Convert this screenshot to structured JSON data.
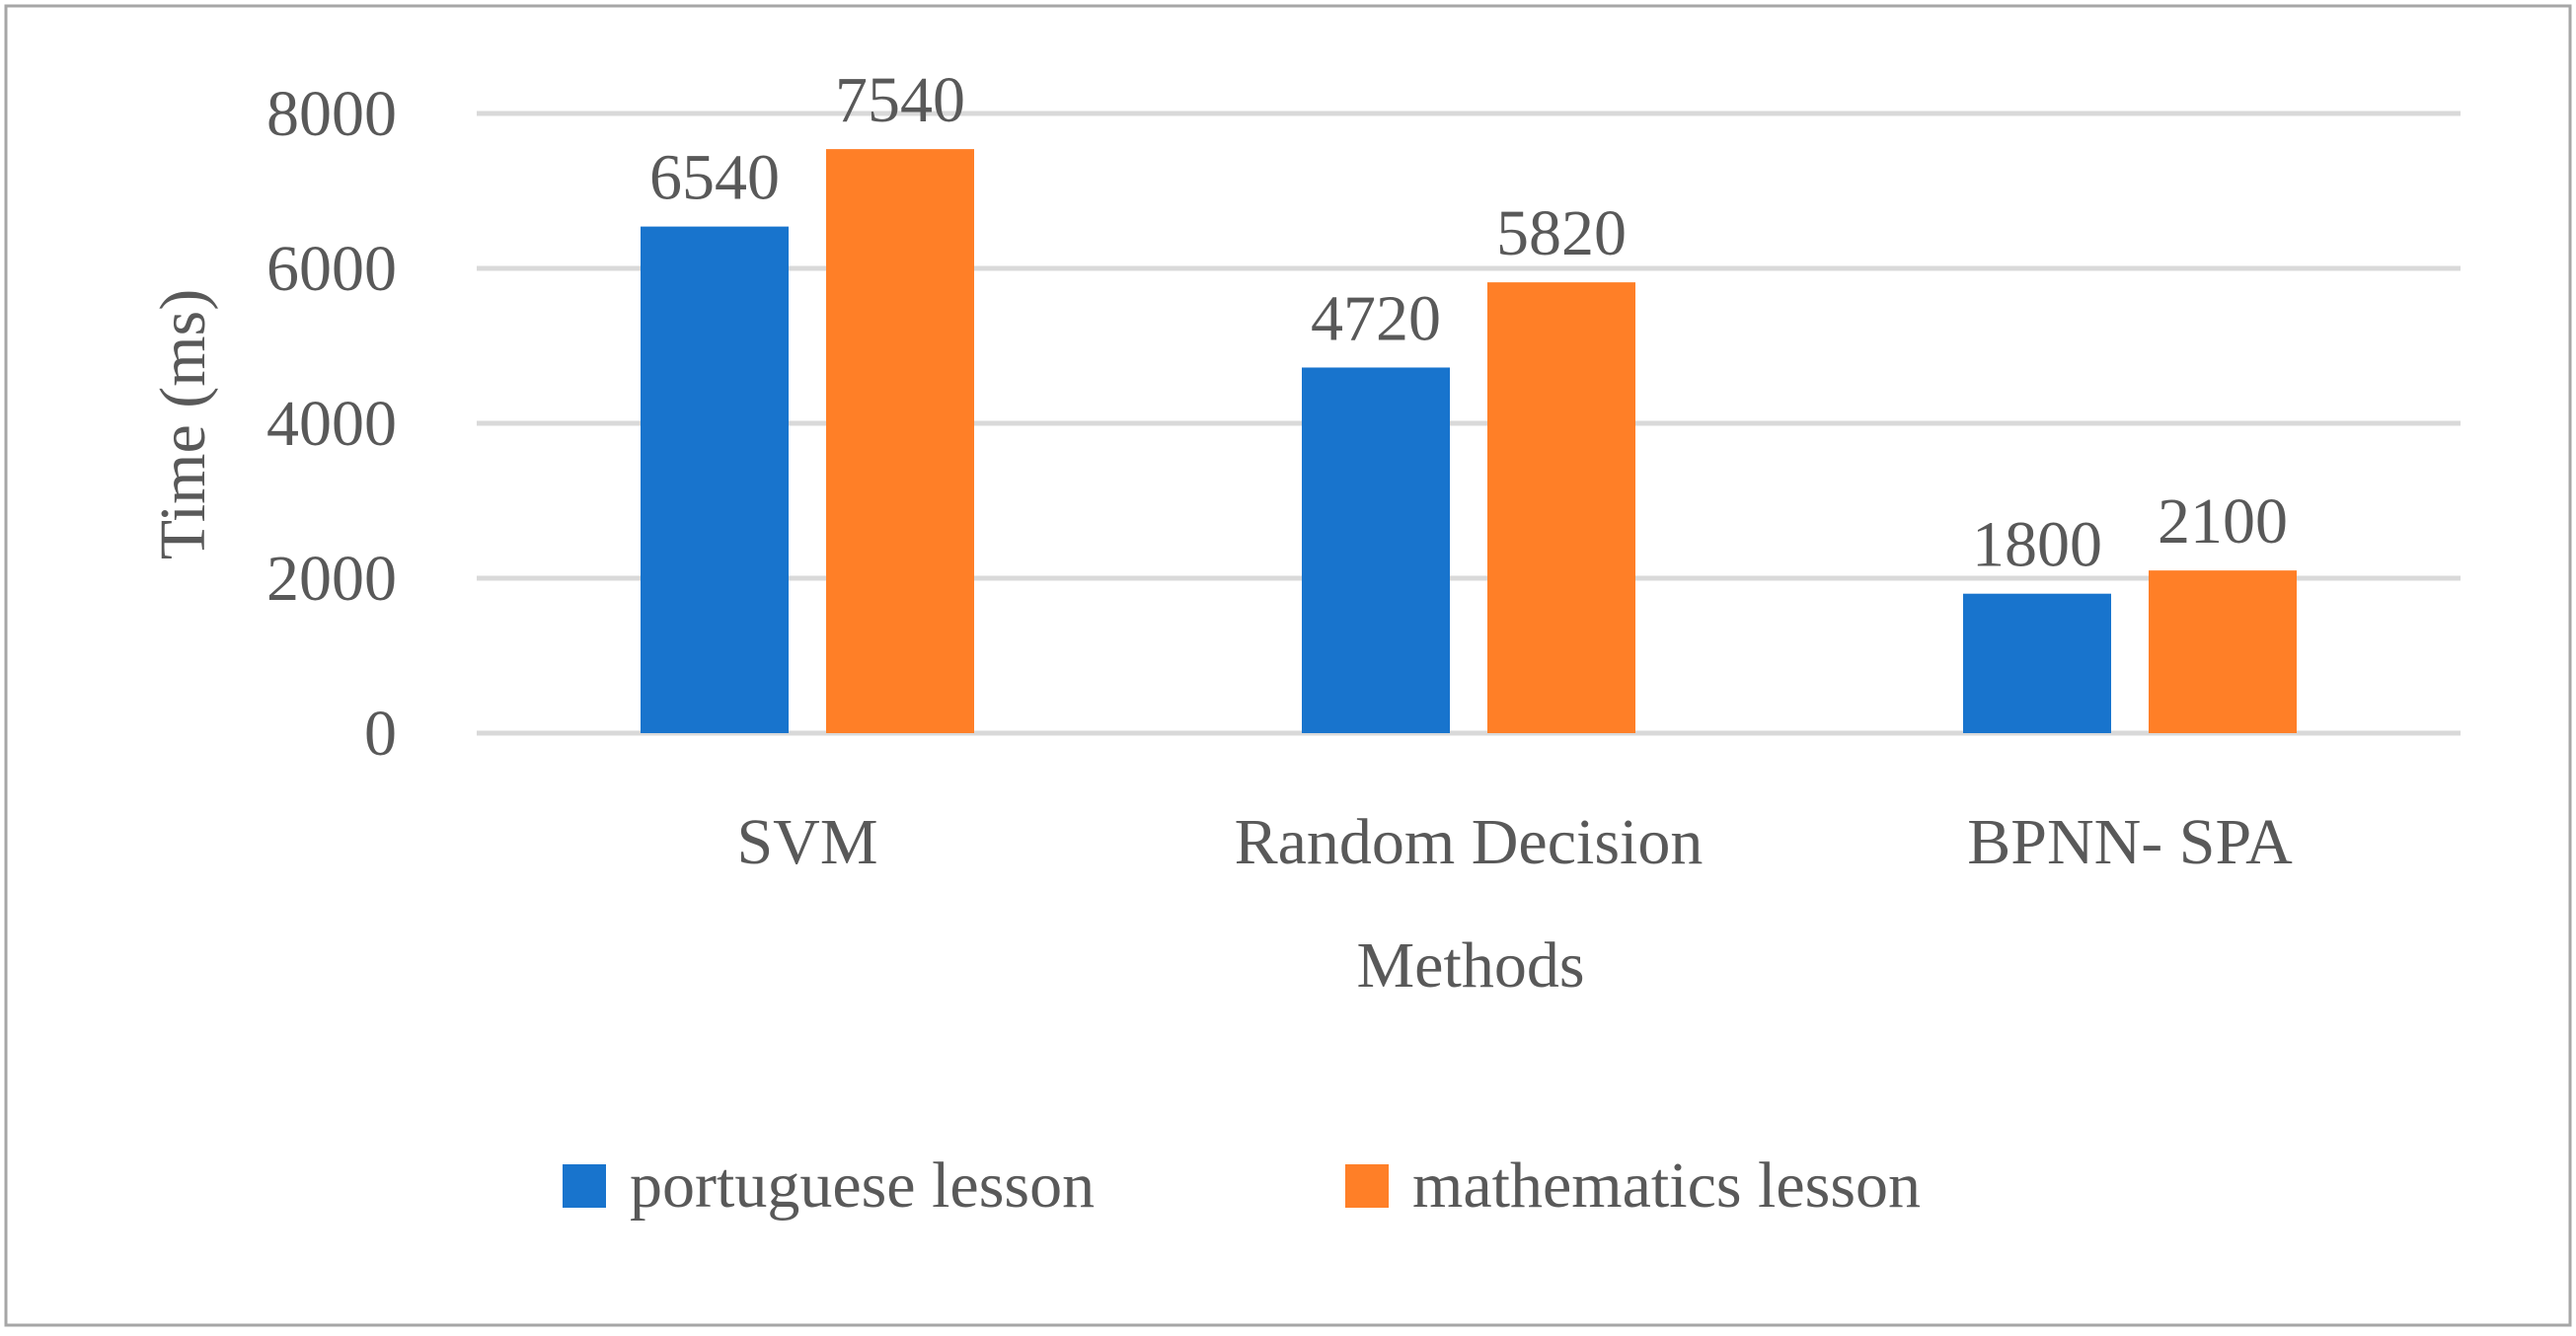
{
  "chart_data": {
    "type": "bar",
    "title": "",
    "xlabel": "Methods",
    "ylabel": "Time (ms)",
    "ylim": [
      0,
      8000
    ],
    "yticks": [
      0,
      2000,
      4000,
      6000,
      8000
    ],
    "grid": true,
    "legend_position": "bottom",
    "categories": [
      "SVM",
      "Random Decision",
      "BPNN- SPA"
    ],
    "series": [
      {
        "name": "portuguese lesson",
        "values": [
          6540,
          4720,
          1800
        ],
        "color": "#1874CD"
      },
      {
        "name": "mathematics lesson",
        "values": [
          7540,
          5820,
          2100
        ],
        "color": "#FF7F27"
      }
    ]
  },
  "colors": {
    "gridline": "#d9d9d9",
    "border": "#a6a6a6",
    "text": "#595959"
  }
}
